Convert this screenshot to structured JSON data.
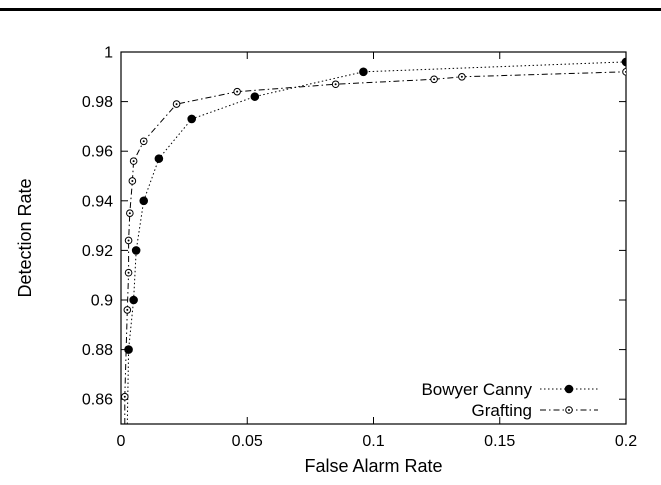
{
  "chart_data": {
    "type": "line",
    "xlabel": "False Alarm Rate",
    "ylabel": "Detection Rate",
    "xlim": [
      0,
      0.2
    ],
    "ylim": [
      0.85,
      1.0
    ],
    "x_ticks": [
      "0",
      "0.05",
      "0.1",
      "0.15",
      "0.2"
    ],
    "x_tick_values": [
      0,
      0.05,
      0.1,
      0.15,
      0.2
    ],
    "y_ticks": [
      "0.86",
      "0.88",
      "0.9",
      "0.92",
      "0.94",
      "0.96",
      "0.98",
      "1"
    ],
    "y_tick_values": [
      0.86,
      0.88,
      0.9,
      0.92,
      0.94,
      0.96,
      0.98,
      1.0
    ],
    "grid": false,
    "legend_position": "bottom-right",
    "series": [
      {
        "name": "Bowyer Canny",
        "marker": "filled-circle",
        "line_style": "dotted",
        "points": [
          [
            0.0025,
            0.85
          ],
          [
            0.003,
            0.88
          ],
          [
            0.005,
            0.9
          ],
          [
            0.006,
            0.92
          ],
          [
            0.009,
            0.94
          ],
          [
            0.015,
            0.957
          ],
          [
            0.028,
            0.973
          ],
          [
            0.053,
            0.982
          ],
          [
            0.096,
            0.992
          ],
          [
            0.2,
            0.996
          ]
        ]
      },
      {
        "name": "Grafting",
        "marker": "open-circle",
        "line_style": "dash-dot",
        "points": [
          [
            0.0015,
            0.85
          ],
          [
            0.0015,
            0.861
          ],
          [
            0.0025,
            0.896
          ],
          [
            0.003,
            0.911
          ],
          [
            0.003,
            0.924
          ],
          [
            0.0035,
            0.935
          ],
          [
            0.0045,
            0.948
          ],
          [
            0.005,
            0.956
          ],
          [
            0.009,
            0.964
          ],
          [
            0.022,
            0.979
          ],
          [
            0.046,
            0.984
          ],
          [
            0.085,
            0.987
          ],
          [
            0.124,
            0.989
          ],
          [
            0.135,
            0.99
          ],
          [
            0.2,
            0.992
          ]
        ]
      }
    ]
  }
}
